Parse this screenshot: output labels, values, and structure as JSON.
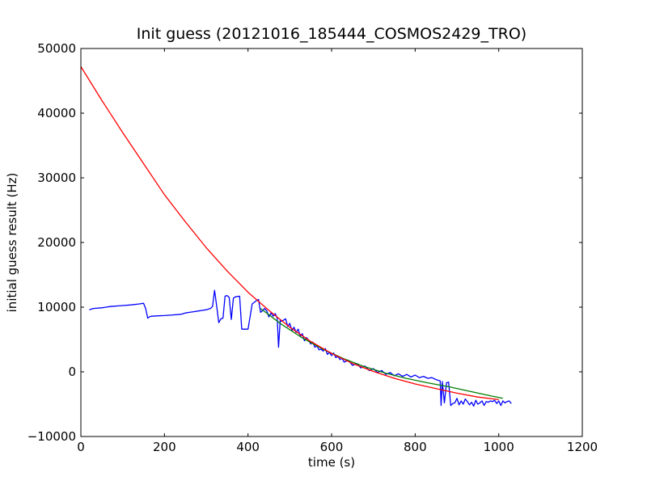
{
  "chart_data": {
    "type": "line",
    "title": "Init guess (20121016_185444_COSMOS2429_TRO)",
    "xlabel": "time (s)",
    "ylabel": "initial guess result (Hz)",
    "xlim": [
      0,
      1200
    ],
    "ylim": [
      -10000,
      50000
    ],
    "xticks": [
      0,
      200,
      400,
      600,
      800,
      1000,
      1200
    ],
    "yticks": [
      -10000,
      0,
      10000,
      20000,
      30000,
      40000,
      50000
    ],
    "xtick_labels": [
      "0",
      "200",
      "400",
      "600",
      "800",
      "1000",
      "1200"
    ],
    "ytick_labels": [
      "−10000",
      "0",
      "10000",
      "20000",
      "30000",
      "40000",
      "50000"
    ],
    "grid": false,
    "legend": "none",
    "series": [
      {
        "color": "#0000ff",
        "x": [
          20,
          30,
          50,
          60,
          70,
          80,
          90,
          100,
          120,
          140,
          150,
          155,
          160,
          165,
          170,
          180,
          200,
          220,
          240,
          250,
          260,
          270,
          280,
          290,
          300,
          310,
          315,
          320,
          325,
          330,
          335,
          340,
          345,
          350,
          355,
          360,
          365,
          370,
          380,
          385,
          390,
          400,
          410,
          420,
          425,
          430,
          432,
          440,
          445,
          450,
          455,
          460,
          465,
          470,
          473,
          477,
          480,
          490,
          495,
          500,
          505,
          510,
          515,
          520,
          525,
          530,
          535,
          540,
          545,
          550,
          555,
          560,
          565,
          570,
          575,
          580,
          585,
          590,
          595,
          600,
          605,
          610,
          615,
          620,
          625,
          630,
          640,
          650,
          660,
          670,
          680,
          690,
          700,
          710,
          720,
          730,
          740,
          750,
          760,
          770,
          780,
          790,
          800,
          810,
          820,
          830,
          840,
          850,
          860,
          862,
          865,
          870,
          875,
          880,
          885,
          890,
          895,
          900,
          905,
          910,
          915,
          920,
          925,
          930,
          935,
          940,
          945,
          950,
          955,
          960,
          965,
          970,
          975,
          980,
          985,
          990,
          995,
          1000,
          1005,
          1010,
          1015,
          1020,
          1025,
          1030
        ],
        "y": [
          9600,
          9800,
          9900,
          10000,
          10100,
          10150,
          10200,
          10250,
          10350,
          10500,
          10600,
          9800,
          8300,
          8550,
          8600,
          8650,
          8700,
          8800,
          8900,
          9100,
          9200,
          9300,
          9400,
          9500,
          9600,
          9800,
          10100,
          12600,
          10200,
          7600,
          8200,
          8300,
          11700,
          11800,
          11500,
          8100,
          11400,
          11600,
          11700,
          6600,
          6600,
          6600,
          10500,
          11000,
          11200,
          9200,
          9300,
          9800,
          9400,
          8500,
          9100,
          8600,
          9000,
          8300,
          3800,
          8000,
          7800,
          8200,
          7000,
          7500,
          6400,
          6900,
          6100,
          6600,
          5500,
          5900,
          4800,
          5300,
          4900,
          4300,
          4600,
          3800,
          4000,
          3400,
          3500,
          3200,
          3600,
          2700,
          3000,
          2500,
          2900,
          2200,
          2400,
          1900,
          2100,
          1500,
          1800,
          1000,
          1300,
          600,
          900,
          200,
          500,
          -100,
          200,
          -400,
          -100,
          -600,
          -300,
          -700,
          -400,
          -800,
          -500,
          -900,
          -700,
          -1000,
          -900,
          -1200,
          -1400,
          -5200,
          -1500,
          -4800,
          -1700,
          -1600,
          -5200,
          -4900,
          -4800,
          -4100,
          -5100,
          -4500,
          -5000,
          -4200,
          -4600,
          -5100,
          -4700,
          -5300,
          -4400,
          -5000,
          -4800,
          -4500,
          -5200,
          -4600,
          -4700,
          -4500,
          -4600,
          -4400,
          -4900,
          -4500,
          -5200,
          -4500,
          -4800,
          -4600,
          -4500,
          -4900
        ]
      },
      {
        "color": "#007f00",
        "x": [
          430,
          480,
          530,
          580,
          630,
          680,
          730,
          780,
          830,
          880,
          930,
          980,
          1010
        ],
        "y": [
          9800,
          7350,
          5250,
          3480,
          2000,
          780,
          -210,
          -1020,
          -1700,
          -2300,
          -3000,
          -3700,
          -4100
        ]
      },
      {
        "color": "#ff0000",
        "x": [
          0,
          50,
          100,
          150,
          200,
          250,
          300,
          350,
          400,
          450,
          500,
          550,
          600,
          650,
          700,
          750,
          800,
          850,
          900,
          950,
          1000
        ],
        "y": [
          47200,
          42000,
          37000,
          32200,
          27400,
          23200,
          19200,
          15600,
          12300,
          9500,
          6900,
          4700,
          2850,
          1300,
          60,
          -1000,
          -1880,
          -2600,
          -3300,
          -3900,
          -4300
        ]
      }
    ]
  }
}
